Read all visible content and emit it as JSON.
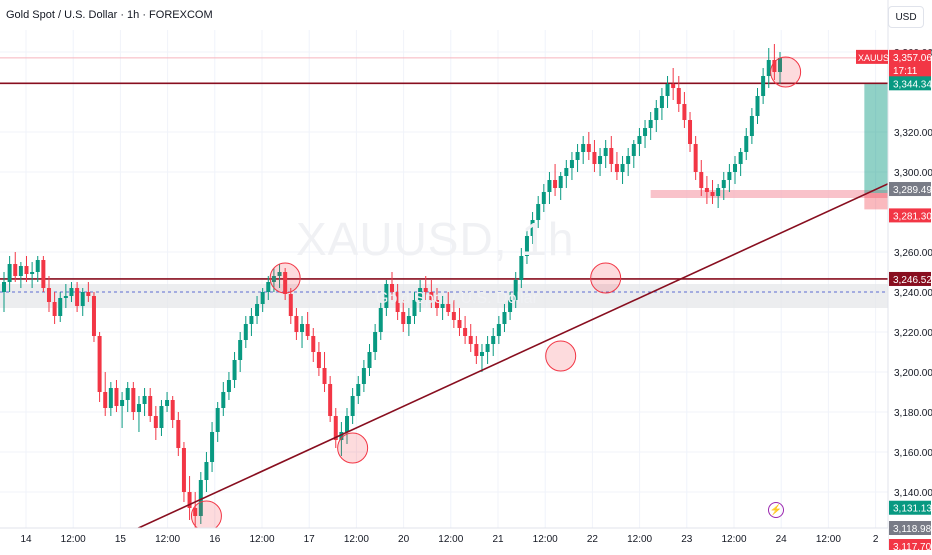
{
  "header": {
    "title": "Gold Spot / U.S. Dollar · 1h · FOREXCOM",
    "currency": "USD"
  },
  "watermark": {
    "symbol": "XAUUSD, 1h",
    "name": "Gold Spot / U.S. Dollar"
  },
  "price_axis": {
    "ticks": [
      "3,360.00",
      "3,320.00",
      "3,300.00",
      "3,260.00",
      "3,240.00",
      "3,220.00",
      "3,200.00",
      "3,180.00",
      "3,160.00",
      "3,140.00"
    ],
    "tags": [
      {
        "label": "XAUUSD",
        "value": "3,357.06",
        "countdown": "17:11",
        "color": "#f23645"
      },
      {
        "value": "3,344.34",
        "color": "#089981"
      },
      {
        "value": "3,289.49",
        "color": "#787b86"
      },
      {
        "value": "3,281.30",
        "color": "#f23645"
      },
      {
        "value": "3,246.52",
        "color": "#880e1f"
      },
      {
        "value": "3,131.13",
        "color": "#089981"
      },
      {
        "value": "3,118.98",
        "color": "#787b86"
      },
      {
        "value": "3,117.70",
        "color": "#f23645"
      }
    ]
  },
  "time_axis": [
    "14",
    "12:00",
    "15",
    "12:00",
    "16",
    "12:00",
    "17",
    "12:00",
    "20",
    "12:00",
    "21",
    "12:00",
    "22",
    "12:00",
    "23",
    "12:00",
    "24",
    "12:00",
    "2"
  ],
  "colors": {
    "up": "#089981",
    "down": "#f23645",
    "level": "#880e1f",
    "trend": "#880e1f",
    "grid": "#f0f3fa",
    "circle": "#f23645"
  },
  "chart_data": {
    "type": "candlestick",
    "symbol": "XAUUSD",
    "timeframe": "1h",
    "y_range": [
      3110,
      3375
    ],
    "horizontal_levels": [
      3344.34,
      3246.52
    ],
    "support_zone": [
      3232,
      3244
    ],
    "trendline": {
      "from": {
        "x": 3,
        "y": 3095
      },
      "to": {
        "x": 185,
        "y": 3330
      }
    },
    "long_position": {
      "x_start": 153,
      "x_end": 172,
      "entry": 3289.49,
      "target": 3344.34,
      "stop": 3281.3
    },
    "highlight_zone": {
      "x_start": 115,
      "x_end": 172,
      "y_range": [
        3287,
        3291
      ]
    },
    "marked_points": [
      {
        "x": 36,
        "y": 3128
      },
      {
        "x": 50,
        "y": 3247
      },
      {
        "x": 62,
        "y": 3162
      },
      {
        "x": 99,
        "y": 3208
      },
      {
        "x": 107,
        "y": 3247
      },
      {
        "x": 139,
        "y": 3350
      },
      {
        "x": 162,
        "y": 3290
      }
    ],
    "last_price": 3357.06,
    "ohlc": [
      [
        3240,
        3250,
        3230,
        3245
      ],
      [
        3245,
        3258,
        3240,
        3254
      ],
      [
        3254,
        3260,
        3245,
        3248
      ],
      [
        3248,
        3255,
        3242,
        3253
      ],
      [
        3253,
        3258,
        3245,
        3249
      ],
      [
        3249,
        3255,
        3242,
        3250
      ],
      [
        3250,
        3258,
        3245,
        3256
      ],
      [
        3256,
        3258,
        3240,
        3242
      ],
      [
        3242,
        3248,
        3230,
        3235
      ],
      [
        3235,
        3240,
        3224,
        3228
      ],
      [
        3228,
        3240,
        3225,
        3237
      ],
      [
        3237,
        3244,
        3232,
        3238
      ],
      [
        3238,
        3245,
        3235,
        3242
      ],
      [
        3242,
        3245,
        3230,
        3233
      ],
      [
        3233,
        3242,
        3228,
        3240
      ],
      [
        3240,
        3245,
        3235,
        3238
      ],
      [
        3238,
        3240,
        3215,
        3218
      ],
      [
        3218,
        3220,
        3185,
        3190
      ],
      [
        3190,
        3200,
        3178,
        3182
      ],
      [
        3182,
        3195,
        3178,
        3192
      ],
      [
        3192,
        3196,
        3180,
        3183
      ],
      [
        3183,
        3190,
        3172,
        3186
      ],
      [
        3186,
        3195,
        3180,
        3192
      ],
      [
        3192,
        3195,
        3176,
        3180
      ],
      [
        3180,
        3188,
        3170,
        3184
      ],
      [
        3184,
        3192,
        3178,
        3188
      ],
      [
        3188,
        3192,
        3175,
        3178
      ],
      [
        3178,
        3183,
        3166,
        3172
      ],
      [
        3172,
        3186,
        3168,
        3183
      ],
      [
        3183,
        3190,
        3180,
        3186
      ],
      [
        3186,
        3188,
        3172,
        3176
      ],
      [
        3176,
        3180,
        3158,
        3162
      ],
      [
        3162,
        3165,
        3135,
        3140
      ],
      [
        3140,
        3148,
        3126,
        3132
      ],
      [
        3132,
        3140,
        3122,
        3128
      ],
      [
        3128,
        3150,
        3124,
        3146
      ],
      [
        3146,
        3160,
        3140,
        3155
      ],
      [
        3155,
        3175,
        3150,
        3170
      ],
      [
        3170,
        3185,
        3165,
        3182
      ],
      [
        3182,
        3195,
        3178,
        3190
      ],
      [
        3190,
        3200,
        3186,
        3196
      ],
      [
        3196,
        3210,
        3192,
        3206
      ],
      [
        3206,
        3220,
        3200,
        3216
      ],
      [
        3216,
        3228,
        3212,
        3224
      ],
      [
        3224,
        3232,
        3218,
        3228
      ],
      [
        3228,
        3238,
        3224,
        3234
      ],
      [
        3234,
        3242,
        3230,
        3240
      ],
      [
        3240,
        3248,
        3236,
        3245
      ],
      [
        3245,
        3252,
        3240,
        3248
      ],
      [
        3248,
        3254,
        3242,
        3250
      ],
      [
        3250,
        3252,
        3236,
        3239
      ],
      [
        3239,
        3242,
        3224,
        3228
      ],
      [
        3228,
        3232,
        3216,
        3220
      ],
      [
        3220,
        3228,
        3212,
        3224
      ],
      [
        3224,
        3230,
        3216,
        3218
      ],
      [
        3218,
        3222,
        3205,
        3210
      ],
      [
        3210,
        3215,
        3198,
        3202
      ],
      [
        3202,
        3210,
        3190,
        3194
      ],
      [
        3194,
        3198,
        3175,
        3178
      ],
      [
        3178,
        3182,
        3162,
        3166
      ],
      [
        3166,
        3175,
        3158,
        3170
      ],
      [
        3170,
        3182,
        3164,
        3178
      ],
      [
        3178,
        3192,
        3174,
        3188
      ],
      [
        3188,
        3198,
        3184,
        3194
      ],
      [
        3194,
        3206,
        3190,
        3202
      ],
      [
        3202,
        3214,
        3198,
        3210
      ],
      [
        3210,
        3224,
        3206,
        3220
      ],
      [
        3220,
        3235,
        3216,
        3232
      ],
      [
        3232,
        3246,
        3228,
        3244
      ],
      [
        3244,
        3250,
        3236,
        3240
      ],
      [
        3240,
        3244,
        3226,
        3230
      ],
      [
        3230,
        3236,
        3220,
        3224
      ],
      [
        3224,
        3232,
        3218,
        3228
      ],
      [
        3228,
        3240,
        3224,
        3236
      ],
      [
        3236,
        3246,
        3230,
        3242
      ],
      [
        3242,
        3248,
        3236,
        3240
      ],
      [
        3240,
        3246,
        3232,
        3236
      ],
      [
        3236,
        3242,
        3228,
        3232
      ],
      [
        3232,
        3238,
        3226,
        3234
      ],
      [
        3234,
        3240,
        3228,
        3230
      ],
      [
        3230,
        3236,
        3222,
        3226
      ],
      [
        3226,
        3232,
        3218,
        3222
      ],
      [
        3222,
        3228,
        3214,
        3218
      ],
      [
        3218,
        3224,
        3210,
        3214
      ],
      [
        3214,
        3218,
        3204,
        3208
      ],
      [
        3208,
        3214,
        3200,
        3210
      ],
      [
        3210,
        3218,
        3204,
        3214
      ],
      [
        3214,
        3222,
        3208,
        3218
      ],
      [
        3218,
        3228,
        3214,
        3224
      ],
      [
        3224,
        3234,
        3220,
        3230
      ],
      [
        3230,
        3240,
        3226,
        3236
      ],
      [
        3236,
        3250,
        3232,
        3246
      ],
      [
        3246,
        3262,
        3242,
        3258
      ],
      [
        3258,
        3272,
        3254,
        3268
      ],
      [
        3268,
        3280,
        3264,
        3276
      ],
      [
        3276,
        3288,
        3272,
        3284
      ],
      [
        3284,
        3294,
        3280,
        3290
      ],
      [
        3290,
        3300,
        3284,
        3296
      ],
      [
        3296,
        3304,
        3288,
        3292
      ],
      [
        3292,
        3300,
        3286,
        3298
      ],
      [
        3298,
        3306,
        3292,
        3302
      ],
      [
        3302,
        3310,
        3296,
        3306
      ],
      [
        3306,
        3314,
        3300,
        3310
      ],
      [
        3310,
        3318,
        3304,
        3314
      ],
      [
        3314,
        3320,
        3306,
        3310
      ],
      [
        3310,
        3316,
        3300,
        3304
      ],
      [
        3304,
        3312,
        3298,
        3308
      ],
      [
        3308,
        3316,
        3302,
        3312
      ],
      [
        3312,
        3318,
        3300,
        3304
      ],
      [
        3304,
        3310,
        3296,
        3300
      ],
      [
        3300,
        3308,
        3294,
        3304
      ],
      [
        3304,
        3312,
        3298,
        3308
      ],
      [
        3308,
        3316,
        3302,
        3314
      ],
      [
        3314,
        3322,
        3308,
        3318
      ],
      [
        3318,
        3326,
        3312,
        3322
      ],
      [
        3322,
        3330,
        3316,
        3326
      ],
      [
        3326,
        3336,
        3320,
        3332
      ],
      [
        3332,
        3342,
        3326,
        3338
      ],
      [
        3338,
        3348,
        3332,
        3344
      ],
      [
        3344,
        3352,
        3336,
        3342
      ],
      [
        3342,
        3348,
        3330,
        3334
      ],
      [
        3334,
        3340,
        3322,
        3326
      ],
      [
        3326,
        3330,
        3310,
        3314
      ],
      [
        3314,
        3318,
        3296,
        3300
      ],
      [
        3300,
        3306,
        3288,
        3292
      ],
      [
        3292,
        3298,
        3284,
        3290
      ],
      [
        3290,
        3296,
        3284,
        3288
      ],
      [
        3288,
        3294,
        3282,
        3292
      ],
      [
        3292,
        3300,
        3286,
        3296
      ],
      [
        3296,
        3304,
        3290,
        3300
      ],
      [
        3300,
        3308,
        3294,
        3304
      ],
      [
        3304,
        3312,
        3298,
        3310
      ],
      [
        3310,
        3322,
        3306,
        3318
      ],
      [
        3318,
        3332,
        3314,
        3328
      ],
      [
        3328,
        3342,
        3324,
        3338
      ],
      [
        3338,
        3352,
        3334,
        3348
      ],
      [
        3348,
        3362,
        3342,
        3356
      ],
      [
        3356,
        3364,
        3346,
        3350
      ],
      [
        3350,
        3360,
        3344,
        3357
      ]
    ]
  }
}
